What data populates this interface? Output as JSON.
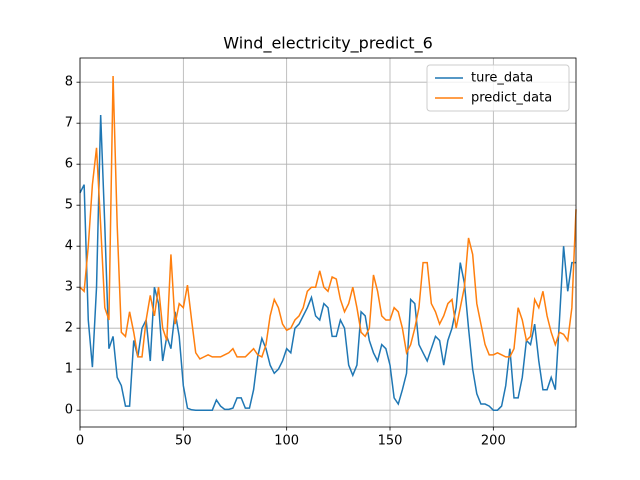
{
  "chart_data": {
    "type": "line",
    "title": "Wind_electricity_predict_6",
    "x": [
      0,
      2,
      4,
      6,
      8,
      10,
      12,
      14,
      16,
      18,
      20,
      22,
      24,
      26,
      28,
      30,
      32,
      34,
      36,
      38,
      40,
      42,
      44,
      46,
      48,
      50,
      52,
      54,
      56,
      58,
      60,
      62,
      64,
      66,
      68,
      70,
      72,
      74,
      76,
      78,
      80,
      82,
      84,
      86,
      88,
      90,
      92,
      94,
      96,
      98,
      100,
      102,
      104,
      106,
      108,
      110,
      112,
      114,
      116,
      118,
      120,
      122,
      124,
      126,
      128,
      130,
      132,
      134,
      136,
      138,
      140,
      142,
      144,
      146,
      148,
      150,
      152,
      154,
      156,
      158,
      160,
      162,
      164,
      166,
      168,
      170,
      172,
      174,
      176,
      178,
      180,
      182,
      184,
      186,
      188,
      190,
      192,
      194,
      196,
      198,
      200,
      202,
      204,
      206,
      208,
      210,
      212,
      214,
      216,
      218,
      220,
      222,
      224,
      226,
      228,
      230,
      232,
      234,
      236,
      238,
      240
    ],
    "series": [
      {
        "name": "ture_data",
        "color": "#1f77b4",
        "values": [
          5.3,
          5.5,
          2.2,
          1.05,
          3.0,
          7.2,
          4.5,
          1.5,
          1.8,
          0.8,
          0.6,
          0.1,
          0.1,
          1.7,
          1.3,
          2.0,
          2.2,
          1.2,
          3.0,
          2.6,
          1.2,
          1.8,
          1.5,
          2.4,
          1.8,
          0.6,
          0.05,
          0.01,
          0.0,
          0.0,
          0.0,
          0.0,
          0.0,
          0.25,
          0.1,
          0.02,
          0.02,
          0.05,
          0.3,
          0.3,
          0.05,
          0.05,
          0.5,
          1.3,
          1.75,
          1.5,
          1.1,
          0.9,
          1.0,
          1.2,
          1.5,
          1.4,
          2.0,
          2.1,
          2.3,
          2.5,
          2.75,
          2.3,
          2.2,
          2.6,
          2.5,
          1.8,
          1.8,
          2.2,
          2.0,
          1.1,
          0.85,
          1.1,
          2.4,
          2.3,
          1.7,
          1.4,
          1.2,
          1.6,
          1.5,
          1.1,
          0.3,
          0.15,
          0.5,
          0.9,
          2.7,
          2.6,
          1.6,
          1.4,
          1.2,
          1.5,
          1.8,
          1.7,
          1.1,
          1.7,
          2.0,
          2.5,
          3.6,
          3.1,
          2.0,
          1.0,
          0.4,
          0.15,
          0.15,
          0.1,
          0.0,
          0.0,
          0.1,
          0.6,
          1.5,
          0.3,
          0.3,
          0.8,
          1.7,
          1.6,
          2.1,
          1.2,
          0.5,
          0.5,
          0.8,
          0.5,
          2.2,
          4.0,
          2.9,
          3.6,
          3.6
        ]
      },
      {
        "name": "predict_data",
        "color": "#ff7f0e",
        "values": [
          3.0,
          2.9,
          4.0,
          5.5,
          6.4,
          4.5,
          2.5,
          2.2,
          8.15,
          4.5,
          1.9,
          1.8,
          2.4,
          1.9,
          1.3,
          1.3,
          2.2,
          2.8,
          2.3,
          3.0,
          2.0,
          1.7,
          3.8,
          2.1,
          2.6,
          2.5,
          3.05,
          2.2,
          1.4,
          1.25,
          1.3,
          1.35,
          1.3,
          1.3,
          1.3,
          1.35,
          1.4,
          1.5,
          1.3,
          1.3,
          1.3,
          1.4,
          1.5,
          1.35,
          1.3,
          1.6,
          2.3,
          2.7,
          2.5,
          2.1,
          1.95,
          2.0,
          2.2,
          2.3,
          2.5,
          2.9,
          3.0,
          3.0,
          3.4,
          3.0,
          2.9,
          3.25,
          3.2,
          2.7,
          2.4,
          2.6,
          3.0,
          2.5,
          1.9,
          1.8,
          2.0,
          3.3,
          2.9,
          2.3,
          2.2,
          2.2,
          2.5,
          2.4,
          2.0,
          1.4,
          1.6,
          2.0,
          2.5,
          3.6,
          3.6,
          2.6,
          2.4,
          2.1,
          2.3,
          2.6,
          2.7,
          2.0,
          2.5,
          3.0,
          4.2,
          3.8,
          2.6,
          2.1,
          1.6,
          1.35,
          1.35,
          1.4,
          1.35,
          1.3,
          1.3,
          1.5,
          2.5,
          2.2,
          1.7,
          1.8,
          2.7,
          2.5,
          2.9,
          2.3,
          1.9,
          1.6,
          1.9,
          1.85,
          1.7,
          2.5,
          4.9
        ]
      }
    ],
    "xlim": [
      0,
      240
    ],
    "ylim": [
      -0.41,
      8.59
    ],
    "xticks": [
      0,
      50,
      100,
      150,
      200
    ],
    "yticks": [
      0,
      1,
      2,
      3,
      4,
      5,
      6,
      7,
      8
    ],
    "grid": true,
    "legend": "upper right"
  }
}
